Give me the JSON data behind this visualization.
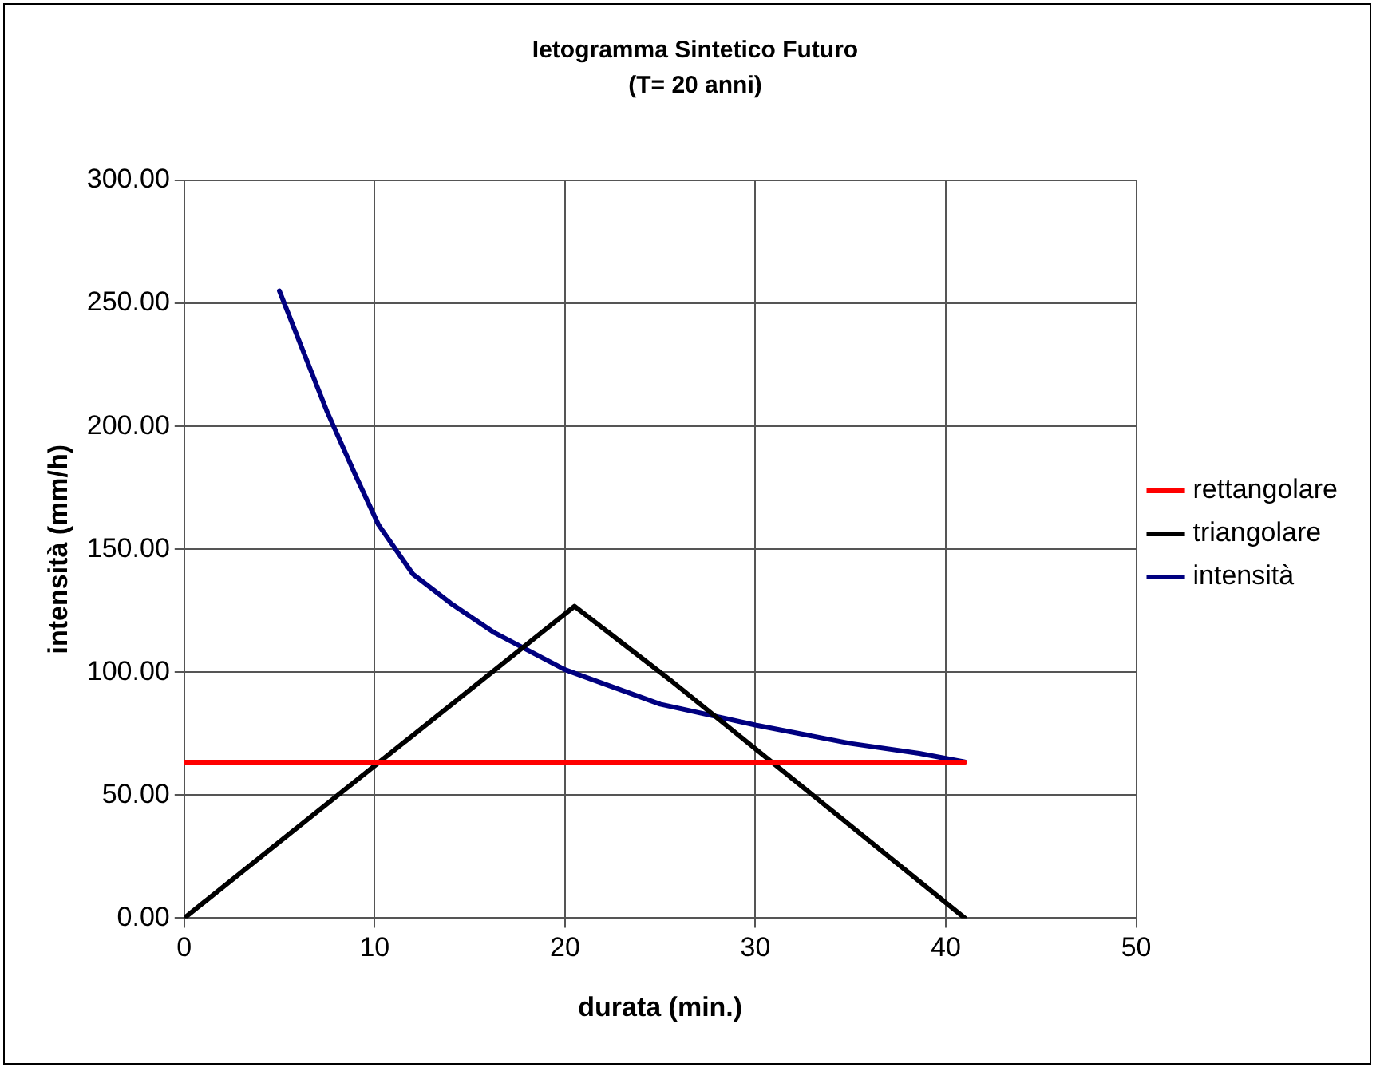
{
  "chart_data": {
    "type": "line",
    "title": "Ietogramma Sintetico Futuro",
    "subtitle": "(T= 20 anni)",
    "xlabel": "durata (min.)",
    "ylabel": "intensità (mm/h)",
    "xlim": [
      0,
      50
    ],
    "xticks": [
      0,
      10,
      20,
      30,
      40,
      50
    ],
    "ylim": [
      0,
      300
    ],
    "yticks": [
      {
        "value": 0,
        "label": "0.00"
      },
      {
        "value": 50,
        "label": "50.00"
      },
      {
        "value": 100,
        "label": "100.00"
      },
      {
        "value": 150,
        "label": "150.00"
      },
      {
        "value": 200,
        "label": "200.00"
      },
      {
        "value": 250,
        "label": "250.00"
      },
      {
        "value": 300,
        "label": "300.00"
      }
    ],
    "grid": true,
    "legend": "right",
    "marker": "none",
    "line_style": "solid",
    "series": [
      {
        "name": "rettangolare",
        "color": "#ff0000",
        "x": [
          0,
          41
        ],
        "values": [
          63.4,
          63.4
        ]
      },
      {
        "name": "triangolare",
        "color": "#000000",
        "x": [
          0,
          5,
          20.5,
          25.5,
          41
        ],
        "values": [
          0,
          31,
          126.8,
          97,
          0
        ]
      },
      {
        "name": "intensità",
        "color": "#000080",
        "x": [
          5,
          7.5,
          9,
          10.2,
          12,
          14,
          16.3,
          20,
          25,
          30,
          35,
          38.6,
          41
        ],
        "values": [
          255,
          206,
          180,
          160,
          140,
          128,
          116,
          101,
          87,
          78.5,
          71,
          67,
          63.5
        ]
      }
    ]
  }
}
